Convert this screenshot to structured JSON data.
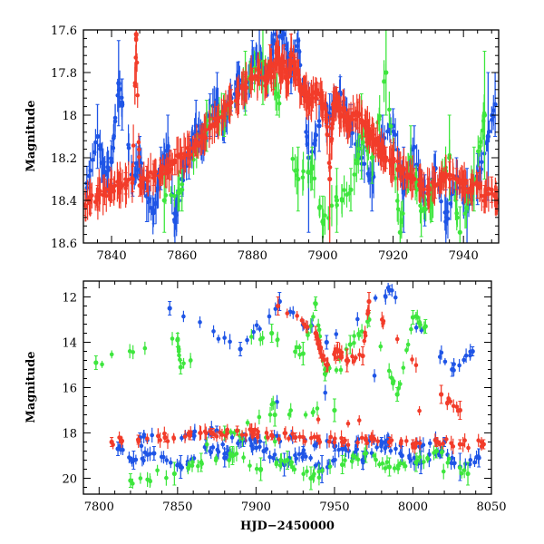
{
  "chart_data": [
    {
      "type": "scatter",
      "panel": "top",
      "xlabel": "",
      "ylabel": "Magnitude",
      "xlim": [
        7832,
        7950
      ],
      "ylim": [
        18.6,
        17.6
      ],
      "y_inverted": true,
      "x_ticks": [
        7840,
        7860,
        7880,
        7900,
        7920,
        7940
      ],
      "y_ticks": [
        17.6,
        17.8,
        18,
        18.2,
        18.4,
        18.6
      ],
      "x_tick_labels": [
        "7840",
        "7860",
        "7880",
        "7900",
        "7920",
        "7940"
      ],
      "y_tick_labels": [
        "17.6",
        "17.8",
        "18",
        "18.2",
        "18.4",
        "18.6"
      ],
      "grid": false,
      "error_bars": true,
      "series": [
        {
          "color": "#1f55e6",
          "x": [
            7833,
            7836,
            7838,
            7840,
            7842,
            7843,
            7846,
            7848,
            7850,
            7852,
            7854,
            7856,
            7858,
            7860,
            7862,
            7864,
            7866,
            7868,
            7870,
            7872,
            7874,
            7876,
            7878,
            7880,
            7882,
            7884,
            7886,
            7889,
            7891,
            7893,
            7896,
            7899,
            7902,
            7905,
            7908,
            7911,
            7914,
            7917,
            7920,
            7923,
            7926,
            7929,
            7932,
            7935,
            7938,
            7941,
            7944,
            7947,
            7949
          ],
          "y": [
            18.32,
            18.1,
            18.28,
            18.22,
            17.85,
            17.95,
            18.3,
            18.2,
            18.38,
            18.45,
            18.25,
            18.15,
            18.5,
            18.3,
            18.2,
            18.05,
            18.12,
            18.0,
            17.95,
            18.05,
            17.92,
            17.85,
            17.9,
            17.75,
            17.72,
            17.85,
            17.65,
            17.62,
            17.8,
            17.65,
            18.2,
            18.05,
            18.0,
            17.9,
            18.05,
            18.2,
            18.3,
            18.1,
            18.05,
            18.35,
            18.15,
            18.4,
            18.25,
            18.5,
            18.3,
            18.45,
            18.3,
            18.1,
            17.95
          ],
          "yerr": [
            0.08,
            0.15,
            0.06,
            0.1,
            0.2,
            0.12,
            0.08,
            0.1,
            0.12,
            0.06,
            0.1,
            0.15,
            0.1,
            0.08,
            0.1,
            0.12,
            0.06,
            0.1,
            0.15,
            0.08,
            0.06,
            0.1,
            0.08,
            0.1,
            0.12,
            0.06,
            0.2,
            0.15,
            0.1,
            0.1,
            0.35,
            0.12,
            0.1,
            0.08,
            0.1,
            0.06,
            0.15,
            0.1,
            0.08,
            0.2,
            0.1,
            0.12,
            0.08,
            0.15,
            0.1,
            0.2,
            0.12,
            0.3,
            0.15
          ]
        },
        {
          "color": "#3ee63e",
          "x": [
            7855,
            7860,
            7867,
            7872,
            7878,
            7883,
            7887,
            7893,
            7897,
            7900,
            7904,
            7908,
            7911,
            7914,
            7918,
            7922,
            7925,
            7928,
            7931,
            7936,
            7939,
            7943,
            7946
          ],
          "y": [
            18.4,
            18.35,
            18.05,
            18.0,
            17.85,
            17.75,
            17.9,
            18.3,
            18.25,
            18.5,
            18.4,
            18.35,
            18.1,
            18.2,
            17.8,
            18.55,
            18.2,
            18.45,
            18.4,
            18.2,
            18.55,
            18.3,
            18.0
          ],
          "yerr": [
            0.15,
            0.1,
            0.12,
            0.1,
            0.15,
            0.2,
            0.1,
            0.15,
            0.1,
            0.12,
            0.15,
            0.1,
            0.2,
            0.12,
            0.2,
            0.1,
            0.15,
            0.12,
            0.1,
            0.2,
            0.12,
            0.15,
            0.3
          ]
        },
        {
          "color": "#f23c2a",
          "x": [
            7832,
            7834,
            7836,
            7838,
            7840,
            7842,
            7844,
            7846,
            7847,
            7848,
            7850,
            7852,
            7854,
            7856,
            7858,
            7860,
            7862,
            7864,
            7866,
            7868,
            7870,
            7872,
            7874,
            7876,
            7878,
            7880,
            7882,
            7884,
            7885,
            7886,
            7887,
            7888,
            7889,
            7890,
            7891,
            7892,
            7893,
            7894,
            7895,
            7896,
            7897,
            7899,
            7900,
            7901,
            7902,
            7903,
            7904,
            7905,
            7906,
            7907,
            7908,
            7910,
            7912,
            7913,
            7914,
            7915,
            7916,
            7917,
            7918,
            7920,
            7922,
            7924,
            7926,
            7928,
            7930,
            7932,
            7934,
            7936,
            7938,
            7940,
            7942,
            7944,
            7946,
            7948,
            7950
          ],
          "y": [
            18.42,
            18.4,
            18.38,
            18.36,
            18.35,
            18.33,
            18.32,
            18.3,
            17.62,
            18.33,
            18.3,
            18.28,
            18.27,
            18.25,
            18.22,
            18.2,
            18.17,
            18.14,
            18.1,
            18.06,
            18.02,
            17.98,
            17.94,
            17.9,
            17.87,
            17.83,
            17.8,
            17.85,
            17.75,
            17.82,
            17.7,
            17.8,
            17.75,
            17.85,
            17.72,
            17.78,
            17.8,
            17.9,
            17.88,
            17.95,
            17.92,
            17.9,
            17.95,
            18.0,
            18.3,
            17.95,
            17.92,
            18.0,
            17.98,
            18.05,
            18.02,
            18.0,
            18.05,
            18.08,
            18.1,
            18.12,
            18.15,
            18.18,
            18.2,
            18.22,
            18.25,
            18.28,
            18.3,
            18.32,
            18.35,
            18.33,
            18.3,
            18.28,
            18.3,
            18.32,
            18.35,
            18.33,
            18.38,
            18.35,
            18.4
          ],
          "yerr": [
            0.05,
            0.06,
            0.05,
            0.06,
            0.05,
            0.06,
            0.05,
            0.06,
            0.25,
            0.05,
            0.06,
            0.05,
            0.06,
            0.05,
            0.06,
            0.05,
            0.06,
            0.05,
            0.06,
            0.05,
            0.06,
            0.05,
            0.06,
            0.05,
            0.06,
            0.05,
            0.06,
            0.05,
            0.08,
            0.06,
            0.1,
            0.05,
            0.08,
            0.06,
            0.1,
            0.05,
            0.06,
            0.05,
            0.06,
            0.05,
            0.06,
            0.05,
            0.06,
            0.05,
            0.3,
            0.06,
            0.05,
            0.06,
            0.05,
            0.06,
            0.05,
            0.06,
            0.05,
            0.06,
            0.05,
            0.06,
            0.05,
            0.06,
            0.05,
            0.06,
            0.05,
            0.06,
            0.05,
            0.06,
            0.05,
            0.06,
            0.05,
            0.06,
            0.05,
            0.06,
            0.05,
            0.06,
            0.05,
            0.06,
            0.05
          ]
        }
      ]
    },
    {
      "type": "scatter",
      "panel": "bottom",
      "xlabel": "HJD−2450000",
      "ylabel": "Magnitude",
      "xlim": [
        7790,
        8050
      ],
      "ylim": [
        20.7,
        11.3
      ],
      "y_inverted": true,
      "x_ticks": [
        7800,
        7850,
        7900,
        7950,
        8000,
        8050
      ],
      "y_ticks": [
        12,
        14,
        16,
        18,
        20
      ],
      "x_tick_labels": [
        "7800",
        "7850",
        "7900",
        "7950",
        "8000",
        "8050"
      ],
      "y_tick_labels": [
        "12",
        "14",
        "16",
        "18",
        "20"
      ],
      "grid": false,
      "error_bars": true,
      "series": [
        {
          "color": "#1f55e6",
          "x": [
            7845,
            7890,
            7915,
            7945,
            7985,
            8025,
            8038,
            7812,
            7822,
            7835,
            7852,
            7868,
            7880,
            7892,
            7905,
            7918,
            7930,
            7942,
            7955,
            7968,
            7980,
            7993,
            8005,
            8018,
            8030,
            8042,
            7826,
            7860,
            7875,
            7900,
            7925,
            7950,
            7975,
            8000,
            8020
          ],
          "y": [
            12.5,
            14.3,
            12.2,
            14.0,
            11.7,
            15.2,
            14.4,
            18.7,
            19.2,
            18.9,
            19.5,
            18.6,
            19.1,
            18.3,
            18.8,
            19.4,
            18.9,
            19.6,
            18.7,
            19.2,
            18.5,
            19.0,
            19.3,
            18.8,
            19.5,
            19.1,
            18.2,
            18.1,
            17.9,
            18.4,
            18.2,
            18.6,
            18.3,
            18.5,
            18.4
          ],
          "yerr": [
            0.3,
            0.3,
            0.4,
            0.3,
            0.2,
            0.3,
            0.2,
            0.3,
            0.4,
            0.3,
            0.5,
            0.3,
            0.4,
            0.3,
            0.4,
            0.5,
            0.3,
            0.6,
            0.3,
            0.4,
            0.3,
            0.4,
            0.5,
            0.3,
            0.6,
            0.4,
            0.2,
            0.2,
            0.2,
            0.2,
            0.2,
            0.2,
            0.2,
            0.2,
            0.2
          ]
        },
        {
          "color": "#3ee63e",
          "x": [
            7798,
            7850,
            7852,
            7910,
            7930,
            7938,
            7944,
            7960,
            7972,
            7990,
            8000,
            8008,
            7820,
            7848,
            7865,
            7885,
            7903,
            7920,
            7935,
            7955,
            7970,
            7985,
            8002,
            8015,
            8035,
            7880,
            7912,
            7950
          ],
          "y": [
            14.9,
            13.9,
            15.1,
            13.6,
            14.5,
            12.3,
            15.4,
            14.1,
            13.0,
            16.3,
            12.9,
            13.3,
            20.1,
            19.8,
            19.3,
            19.0,
            19.6,
            19.2,
            20.0,
            19.4,
            18.9,
            19.5,
            19.3,
            18.8,
            19.8,
            18.0,
            17.2,
            17.0
          ],
          "yerr": [
            0.3,
            0.3,
            0.3,
            0.4,
            0.5,
            0.3,
            0.3,
            0.4,
            0.3,
            0.3,
            0.3,
            0.3,
            0.3,
            0.5,
            0.4,
            0.4,
            0.5,
            0.4,
            0.5,
            0.4,
            0.4,
            0.4,
            0.4,
            0.3,
            0.5,
            0.3,
            0.5,
            0.5
          ]
        },
        {
          "color": "#f23c2a",
          "x": [
            7914,
            7938,
            7941,
            7945,
            7952,
            7958,
            7968,
            7972,
            8018,
            8030,
            7808,
            7825,
            7842,
            7858,
            7872,
            7888,
            7898,
            7910,
            7925,
            7940,
            7955,
            7970,
            7985,
            8000,
            8015,
            8030,
            8045
          ],
          "y": [
            12.4,
            13.6,
            14.3,
            15.0,
            14.4,
            14.8,
            14.6,
            12.2,
            16.3,
            17.0,
            18.4,
            18.3,
            18.2,
            18.1,
            18.0,
            17.9,
            18.0,
            18.1,
            18.2,
            18.3,
            18.4,
            18.3,
            18.4,
            18.5,
            18.4,
            18.5,
            18.5
          ],
          "yerr": [
            0.4,
            0.3,
            0.4,
            0.3,
            0.4,
            0.5,
            0.4,
            0.4,
            0.4,
            0.4,
            0.2,
            0.2,
            0.2,
            0.2,
            0.2,
            0.2,
            0.2,
            0.2,
            0.2,
            0.2,
            0.2,
            0.2,
            0.2,
            0.2,
            0.2,
            0.2,
            0.2
          ]
        }
      ]
    }
  ]
}
